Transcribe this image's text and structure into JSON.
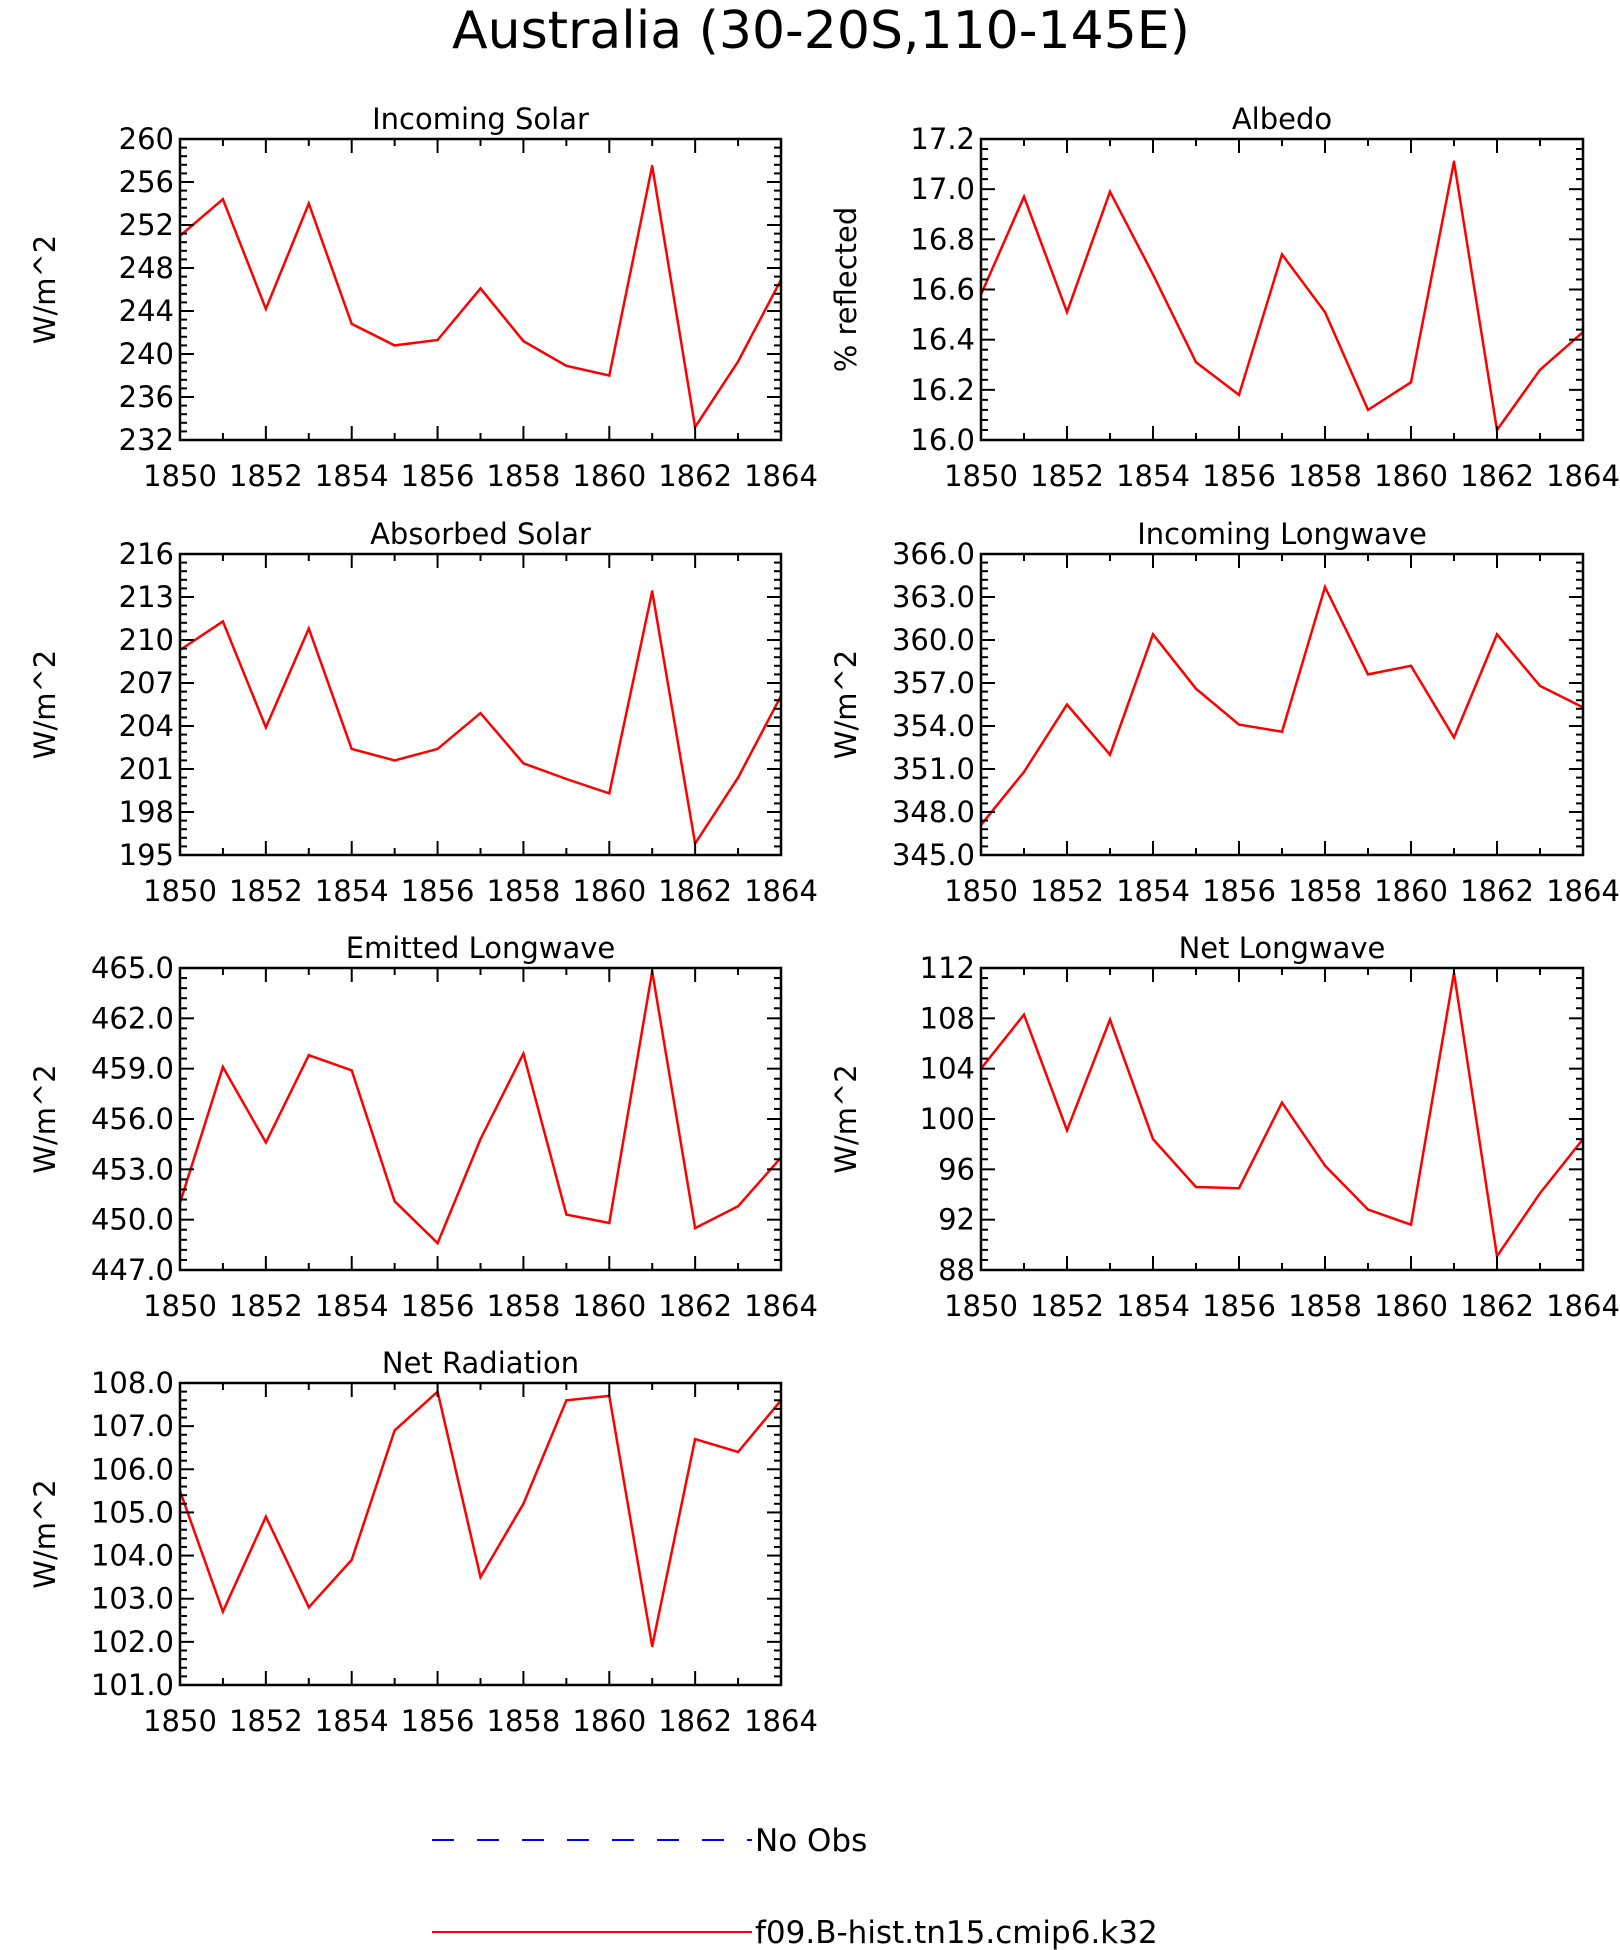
{
  "title": "Australia (30-20S,110-145E)",
  "chart_data": [
    {
      "type": "line",
      "title": "Incoming Solar",
      "ylabel": "W/m^2",
      "ylim": [
        232,
        260
      ],
      "yticks": [
        232,
        236,
        240,
        244,
        248,
        252,
        256,
        260
      ],
      "ytick_labels": [
        "232",
        "236",
        "240",
        "244",
        "248",
        "252",
        "256",
        "260"
      ],
      "xlim": [
        1850,
        1864
      ],
      "xticks": [
        1850,
        1852,
        1854,
        1856,
        1858,
        1860,
        1862,
        1864
      ],
      "xtick_labels": [
        "1850",
        "1852",
        "1854",
        "1856",
        "1858",
        "1860",
        "1862",
        "1864"
      ],
      "series": [
        {
          "color": "#ff0000",
          "x": [
            1850,
            1851,
            1852,
            1853,
            1854,
            1855,
            1856,
            1857,
            1858,
            1859,
            1860,
            1861,
            1862,
            1863,
            1864
          ],
          "values": [
            251.0,
            254.4,
            244.2,
            254.0,
            242.8,
            240.8,
            241.3,
            246.1,
            241.2,
            238.9,
            238.0,
            257.5,
            233.2,
            239.3,
            246.9
          ]
        }
      ]
    },
    {
      "type": "line",
      "title": "Albedo",
      "ylabel": "% reflected",
      "ylim": [
        16.0,
        17.2
      ],
      "yticks": [
        16.0,
        16.2,
        16.4,
        16.6,
        16.8,
        17.0,
        17.2
      ],
      "ytick_labels": [
        "16.0",
        "16.2",
        "16.4",
        "16.6",
        "16.8",
        "17.0",
        "17.2"
      ],
      "xlim": [
        1850,
        1864
      ],
      "xticks": [
        1850,
        1852,
        1854,
        1856,
        1858,
        1860,
        1862,
        1864
      ],
      "xtick_labels": [
        "1850",
        "1852",
        "1854",
        "1856",
        "1858",
        "1860",
        "1862",
        "1864"
      ],
      "series": [
        {
          "color": "#ff0000",
          "x": [
            1850,
            1851,
            1852,
            1853,
            1854,
            1855,
            1856,
            1857,
            1858,
            1859,
            1860,
            1861,
            1862,
            1863,
            1864
          ],
          "values": [
            16.58,
            16.97,
            16.51,
            16.99,
            16.66,
            16.31,
            16.18,
            16.74,
            16.51,
            16.12,
            16.23,
            17.11,
            16.04,
            16.28,
            16.43
          ]
        }
      ]
    },
    {
      "type": "line",
      "title": "Absorbed Solar",
      "ylabel": "W/m^2",
      "ylim": [
        195,
        216
      ],
      "yticks": [
        195,
        198,
        201,
        204,
        207,
        210,
        213,
        216
      ],
      "ytick_labels": [
        "195",
        "198",
        "201",
        "204",
        "207",
        "210",
        "213",
        "216"
      ],
      "xlim": [
        1850,
        1864
      ],
      "xticks": [
        1850,
        1852,
        1854,
        1856,
        1858,
        1860,
        1862,
        1864
      ],
      "xtick_labels": [
        "1850",
        "1852",
        "1854",
        "1856",
        "1858",
        "1860",
        "1862",
        "1864"
      ],
      "series": [
        {
          "color": "#ff0000",
          "x": [
            1850,
            1851,
            1852,
            1853,
            1854,
            1855,
            1856,
            1857,
            1858,
            1859,
            1860,
            1861,
            1862,
            1863,
            1864
          ],
          "values": [
            209.3,
            211.3,
            203.9,
            210.8,
            202.4,
            201.6,
            202.4,
            204.9,
            201.4,
            200.3,
            199.3,
            213.4,
            195.8,
            200.4,
            206.1
          ]
        }
      ]
    },
    {
      "type": "line",
      "title": "Incoming Longwave",
      "ylabel": "W/m^2",
      "ylim": [
        345.0,
        366.0
      ],
      "yticks": [
        345,
        348,
        351,
        354,
        357,
        360,
        363,
        366
      ],
      "ytick_labels": [
        "345.0",
        "348.0",
        "351.0",
        "354.0",
        "357.0",
        "360.0",
        "363.0",
        "366.0"
      ],
      "xlim": [
        1850,
        1864
      ],
      "xticks": [
        1850,
        1852,
        1854,
        1856,
        1858,
        1860,
        1862,
        1864
      ],
      "xtick_labels": [
        "1850",
        "1852",
        "1854",
        "1856",
        "1858",
        "1860",
        "1862",
        "1864"
      ],
      "series": [
        {
          "color": "#ff0000",
          "x": [
            1850,
            1851,
            1852,
            1853,
            1854,
            1855,
            1856,
            1857,
            1858,
            1859,
            1860,
            1861,
            1862,
            1863,
            1864
          ],
          "values": [
            347.1,
            350.8,
            355.5,
            352.0,
            360.4,
            356.6,
            354.1,
            353.6,
            363.7,
            357.6,
            358.2,
            353.2,
            360.4,
            356.8,
            355.3
          ]
        }
      ]
    },
    {
      "type": "line",
      "title": "Emitted Longwave",
      "ylabel": "W/m^2",
      "ylim": [
        447.0,
        465.0
      ],
      "yticks": [
        447,
        450,
        453,
        456,
        459,
        462,
        465
      ],
      "ytick_labels": [
        "447.0",
        "450.0",
        "453.0",
        "456.0",
        "459.0",
        "462.0",
        "465.0"
      ],
      "xlim": [
        1850,
        1864
      ],
      "xticks": [
        1850,
        1852,
        1854,
        1856,
        1858,
        1860,
        1862,
        1864
      ],
      "xtick_labels": [
        "1850",
        "1852",
        "1854",
        "1856",
        "1858",
        "1860",
        "1862",
        "1864"
      ],
      "series": [
        {
          "color": "#ff0000",
          "x": [
            1850,
            1851,
            1852,
            1853,
            1854,
            1855,
            1856,
            1857,
            1858,
            1859,
            1860,
            1861,
            1862,
            1863,
            1864
          ],
          "values": [
            451.0,
            459.1,
            454.6,
            459.8,
            458.9,
            451.1,
            448.6,
            454.8,
            459.9,
            450.3,
            449.8,
            464.8,
            449.5,
            450.8,
            453.7
          ]
        }
      ]
    },
    {
      "type": "line",
      "title": "Net Longwave",
      "ylabel": "W/m^2",
      "ylim": [
        88,
        112
      ],
      "yticks": [
        88,
        92,
        96,
        100,
        104,
        108,
        112
      ],
      "ytick_labels": [
        "88",
        "92",
        "96",
        "100",
        "104",
        "108",
        "112"
      ],
      "xlim": [
        1850,
        1864
      ],
      "xticks": [
        1850,
        1852,
        1854,
        1856,
        1858,
        1860,
        1862,
        1864
      ],
      "xtick_labels": [
        "1850",
        "1852",
        "1854",
        "1856",
        "1858",
        "1860",
        "1862",
        "1864"
      ],
      "series": [
        {
          "color": "#ff0000",
          "x": [
            1850,
            1851,
            1852,
            1853,
            1854,
            1855,
            1856,
            1857,
            1858,
            1859,
            1860,
            1861,
            1862,
            1863,
            1864
          ],
          "values": [
            104.0,
            108.3,
            99.1,
            107.9,
            98.4,
            94.6,
            94.5,
            101.3,
            96.3,
            92.8,
            91.6,
            111.6,
            89.1,
            94.1,
            98.4
          ]
        }
      ]
    },
    {
      "type": "line",
      "title": "Net Radiation",
      "ylabel": "W/m^2",
      "ylim": [
        101.0,
        108.0
      ],
      "yticks": [
        101,
        102,
        103,
        104,
        105,
        106,
        107,
        108
      ],
      "ytick_labels": [
        "101.0",
        "102.0",
        "103.0",
        "104.0",
        "105.0",
        "106.0",
        "107.0",
        "108.0"
      ],
      "xlim": [
        1850,
        1864
      ],
      "xticks": [
        1850,
        1852,
        1854,
        1856,
        1858,
        1860,
        1862,
        1864
      ],
      "xtick_labels": [
        "1850",
        "1852",
        "1854",
        "1856",
        "1858",
        "1860",
        "1862",
        "1864"
      ],
      "series": [
        {
          "color": "#ff0000",
          "x": [
            1850,
            1851,
            1852,
            1853,
            1854,
            1855,
            1856,
            1857,
            1858,
            1859,
            1860,
            1861,
            1862,
            1863,
            1864
          ],
          "values": [
            105.5,
            102.7,
            104.9,
            102.8,
            103.9,
            106.9,
            107.8,
            103.5,
            105.2,
            107.6,
            107.7,
            101.9,
            106.7,
            106.4,
            107.6
          ]
        }
      ]
    }
  ],
  "legend": {
    "position": "bottom",
    "items": [
      {
        "label": "No Obs",
        "color": "#0000ff",
        "style": "dashed"
      },
      {
        "label": "f09.B-hist.tn15.cmip6.k32",
        "color": "#ff0000",
        "style": "solid"
      }
    ]
  }
}
